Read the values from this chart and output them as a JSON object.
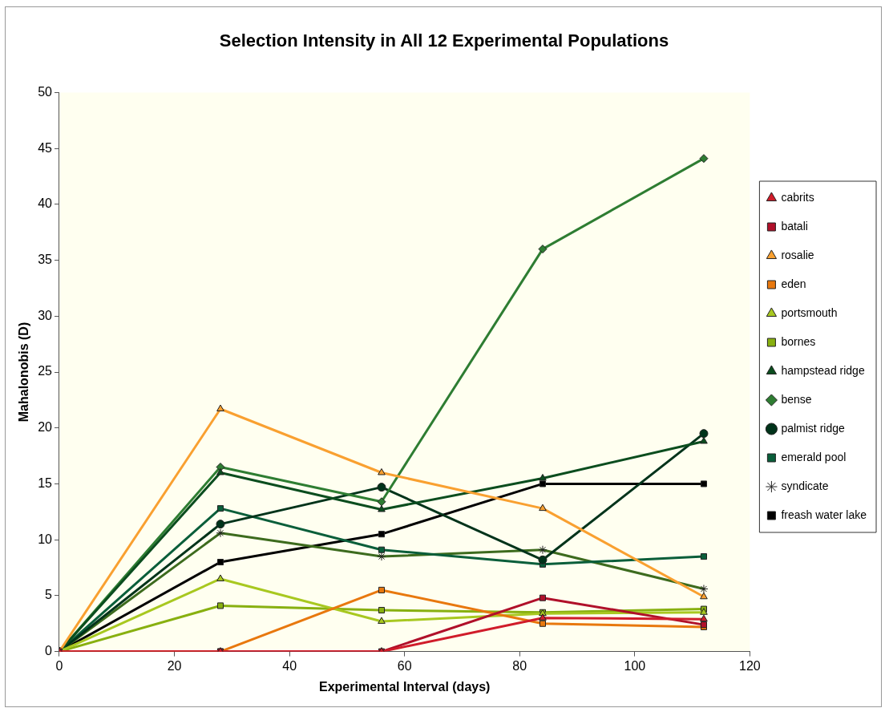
{
  "chart_data": {
    "type": "line",
    "title": "Selection Intensity in All 12 Experimental Populations",
    "xlabel": "Experimental Interval (days)",
    "ylabel": "Mahalonobis (D)",
    "x": [
      0,
      28,
      56,
      84,
      112
    ],
    "xlim": [
      0,
      120
    ],
    "xticks": [
      0,
      20,
      40,
      60,
      80,
      100,
      120
    ],
    "ylim": [
      0,
      50
    ],
    "yticks": [
      0,
      5,
      10,
      15,
      20,
      25,
      30,
      35,
      40,
      45,
      50
    ],
    "grid": false,
    "legend": "right",
    "line_style": "solid",
    "series": [
      {
        "name": "cabrits",
        "color": "#d01c2a",
        "marker": "triangle",
        "values": [
          0,
          0,
          0,
          3.0,
          2.9
        ]
      },
      {
        "name": "batali",
        "color": "#b0102a",
        "marker": "square",
        "values": [
          0,
          0,
          0,
          4.8,
          2.4
        ]
      },
      {
        "name": "rosalie",
        "color": "#f9a030",
        "marker": "triangle",
        "values": [
          0,
          21.7,
          16.0,
          12.8,
          4.9
        ]
      },
      {
        "name": "eden",
        "color": "#e8780e",
        "marker": "square",
        "values": [
          0,
          0,
          5.5,
          2.5,
          2.2
        ]
      },
      {
        "name": "portsmouth",
        "color": "#a8c820",
        "marker": "triangle",
        "values": [
          0,
          6.5,
          2.7,
          3.4,
          3.5
        ]
      },
      {
        "name": "bornes",
        "color": "#88b010",
        "marker": "square",
        "values": [
          0,
          4.1,
          3.7,
          3.5,
          3.8
        ]
      },
      {
        "name": "hampstead ridge",
        "color": "#0b4d1e",
        "marker": "triangle",
        "values": [
          0,
          16.0,
          12.7,
          15.5,
          18.8
        ]
      },
      {
        "name": "bense",
        "color": "#2e7d32",
        "marker": "diamond",
        "values": [
          0,
          16.5,
          13.4,
          36.0,
          44.1
        ]
      },
      {
        "name": "palmist ridge",
        "color": "#00331a",
        "marker": "circle",
        "values": [
          0,
          11.4,
          14.7,
          8.2,
          19.5
        ]
      },
      {
        "name": "emerald pool",
        "color": "#0a5e3a",
        "marker": "square",
        "values": [
          0,
          12.8,
          9.1,
          7.8,
          8.5
        ]
      },
      {
        "name": "syndicate",
        "color": "#3d6b1e",
        "marker": "cross",
        "values": [
          0,
          10.6,
          8.5,
          9.1,
          5.6
        ]
      },
      {
        "name": "freash water lake",
        "color": "#000000",
        "marker": "square",
        "values": [
          0,
          8.0,
          10.5,
          15.0,
          15.0
        ]
      }
    ]
  }
}
